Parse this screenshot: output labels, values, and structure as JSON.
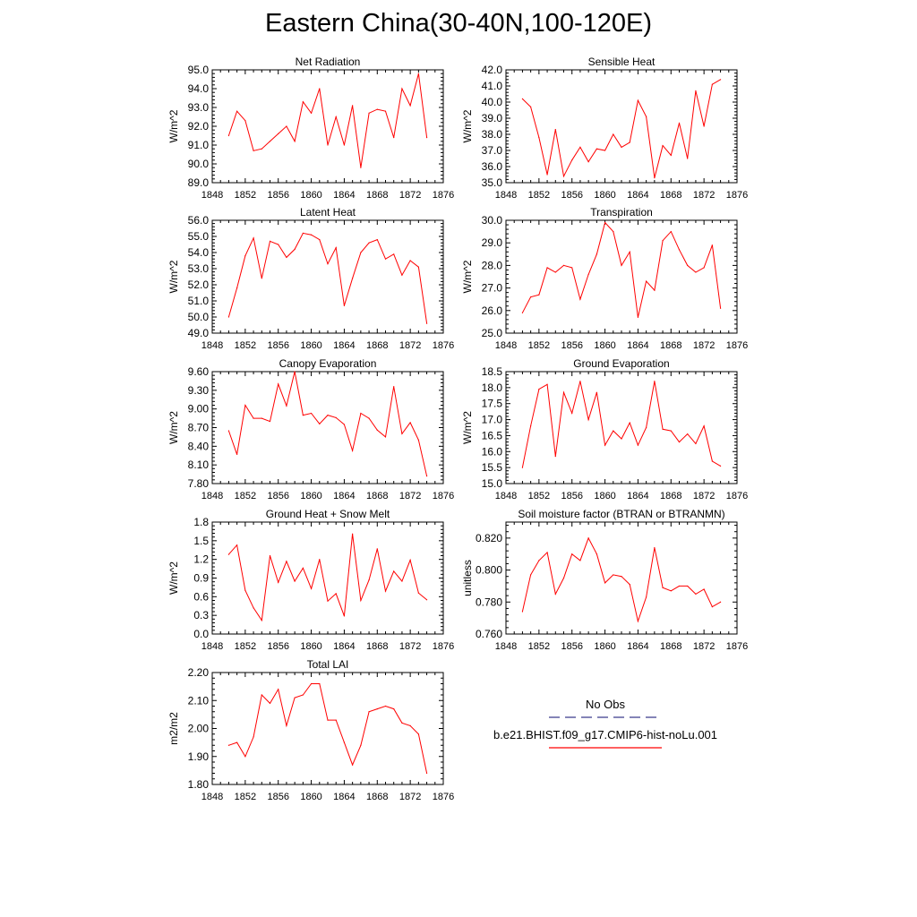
{
  "title": "Eastern China(30-40N,100-120E)",
  "x_ticks": [
    "1848",
    "1852",
    "1856",
    "1860",
    "1864",
    "1868",
    "1872",
    "1876"
  ],
  "colors": {
    "series": "#ff0000",
    "obs": "#3a3a8c"
  },
  "legend": [
    {
      "label": "No Obs",
      "style": "dashed",
      "color": "#3a3a8c"
    },
    {
      "label": "b.e21.BHIST.f09_g17.CMIP6-hist-noLu.001",
      "style": "solid",
      "color": "#ff0000"
    }
  ],
  "chart_data": [
    {
      "type": "line",
      "title": "Net Radiation",
      "ylabel": "W/m^2",
      "xlim": [
        1848,
        1876
      ],
      "ylim": [
        89,
        95
      ],
      "y_ticks": [
        "89.0",
        "90.0",
        "91.0",
        "92.0",
        "93.0",
        "94.0",
        "95.0"
      ],
      "x": [
        1850,
        1851,
        1852,
        1853,
        1854,
        1855,
        1856,
        1857,
        1858,
        1859,
        1860,
        1861,
        1862,
        1863,
        1864,
        1865,
        1866,
        1867,
        1868,
        1869,
        1870,
        1871,
        1872,
        1873,
        1874
      ],
      "y": [
        91.5,
        92.8,
        92.3,
        90.7,
        90.8,
        91.2,
        91.6,
        92.0,
        91.2,
        93.3,
        92.7,
        94.0,
        91.0,
        92.5,
        91.0,
        93.1,
        89.8,
        92.7,
        92.9,
        92.8,
        91.4,
        94.0,
        93.1,
        94.8,
        91.4
      ]
    },
    {
      "type": "line",
      "title": "Sensible Heat",
      "ylabel": "W/m^2",
      "xlim": [
        1848,
        1876
      ],
      "ylim": [
        35,
        42
      ],
      "y_ticks": [
        "35.0",
        "36.0",
        "37.0",
        "38.0",
        "39.0",
        "40.0",
        "41.0",
        "42.0"
      ],
      "x": [
        1850,
        1851,
        1852,
        1853,
        1854,
        1855,
        1856,
        1857,
        1858,
        1859,
        1860,
        1861,
        1862,
        1863,
        1864,
        1865,
        1866,
        1867,
        1868,
        1869,
        1870,
        1871,
        1872,
        1873,
        1874
      ],
      "y": [
        40.2,
        39.7,
        37.8,
        35.5,
        38.3,
        35.4,
        36.4,
        37.2,
        36.3,
        37.1,
        37.0,
        38.0,
        37.2,
        37.5,
        40.1,
        39.1,
        35.3,
        37.3,
        36.7,
        38.7,
        36.5,
        40.7,
        38.5,
        41.1,
        41.4
      ]
    },
    {
      "type": "line",
      "title": "Latent Heat",
      "ylabel": "W/m^2",
      "xlim": [
        1848,
        1876
      ],
      "ylim": [
        49,
        56
      ],
      "y_ticks": [
        "49.0",
        "50.0",
        "51.0",
        "52.0",
        "53.0",
        "54.0",
        "55.0",
        "56.0"
      ],
      "x": [
        1850,
        1851,
        1852,
        1853,
        1854,
        1855,
        1856,
        1857,
        1858,
        1859,
        1860,
        1861,
        1862,
        1863,
        1864,
        1865,
        1866,
        1867,
        1868,
        1869,
        1870,
        1871,
        1872,
        1873,
        1874
      ],
      "y": [
        50.0,
        51.8,
        53.8,
        54.9,
        52.4,
        54.7,
        54.5,
        53.7,
        54.2,
        55.2,
        55.1,
        54.8,
        53.3,
        54.3,
        50.7,
        52.4,
        54.0,
        54.6,
        54.8,
        53.6,
        53.9,
        52.6,
        53.5,
        53.1,
        49.6
      ]
    },
    {
      "type": "line",
      "title": "Transpiration",
      "ylabel": "W/m^2",
      "xlim": [
        1848,
        1876
      ],
      "ylim": [
        25,
        30
      ],
      "y_ticks": [
        "25.0",
        "26.0",
        "27.0",
        "28.0",
        "29.0",
        "30.0"
      ],
      "x": [
        1850,
        1851,
        1852,
        1853,
        1854,
        1855,
        1856,
        1857,
        1858,
        1859,
        1860,
        1861,
        1862,
        1863,
        1864,
        1865,
        1866,
        1867,
        1868,
        1869,
        1870,
        1871,
        1872,
        1873,
        1874
      ],
      "y": [
        25.9,
        26.6,
        26.7,
        27.9,
        27.7,
        28.0,
        27.9,
        26.5,
        27.6,
        28.5,
        29.9,
        29.5,
        28.0,
        28.6,
        25.7,
        27.3,
        26.9,
        29.1,
        29.5,
        28.7,
        28.0,
        27.7,
        27.9,
        28.9,
        26.1
      ]
    },
    {
      "type": "line",
      "title": "Canopy Evaporation",
      "ylabel": "W/m^2",
      "xlim": [
        1848,
        1876
      ],
      "ylim": [
        7.8,
        9.6
      ],
      "y_ticks": [
        "7.80",
        "8.10",
        "8.40",
        "8.70",
        "9.00",
        "9.30",
        "9.60"
      ],
      "x": [
        1850,
        1851,
        1852,
        1853,
        1854,
        1855,
        1856,
        1857,
        1858,
        1859,
        1860,
        1861,
        1862,
        1863,
        1864,
        1865,
        1866,
        1867,
        1868,
        1869,
        1870,
        1871,
        1872,
        1873,
        1874
      ],
      "y": [
        8.65,
        8.27,
        9.06,
        8.85,
        8.85,
        8.8,
        9.4,
        9.05,
        9.6,
        8.9,
        8.93,
        8.76,
        8.9,
        8.86,
        8.75,
        8.33,
        8.93,
        8.85,
        8.66,
        8.55,
        9.36,
        8.6,
        8.78,
        8.5,
        7.92
      ]
    },
    {
      "type": "line",
      "title": "Ground Evaporation",
      "ylabel": "W/m^2",
      "xlim": [
        1848,
        1876
      ],
      "ylim": [
        15,
        18.5
      ],
      "y_ticks": [
        "15.0",
        "15.5",
        "16.0",
        "16.5",
        "17.0",
        "17.5",
        "18.0",
        "18.5"
      ],
      "x": [
        1850,
        1851,
        1852,
        1853,
        1854,
        1855,
        1856,
        1857,
        1858,
        1859,
        1860,
        1861,
        1862,
        1863,
        1864,
        1865,
        1866,
        1867,
        1868,
        1869,
        1870,
        1871,
        1872,
        1873,
        1874
      ],
      "y": [
        15.5,
        16.8,
        17.95,
        18.1,
        15.85,
        17.85,
        17.2,
        18.2,
        17.0,
        17.85,
        16.2,
        16.65,
        16.4,
        16.9,
        16.2,
        16.75,
        18.2,
        16.7,
        16.65,
        16.3,
        16.55,
        16.25,
        16.8,
        15.7,
        15.55
      ]
    },
    {
      "type": "line",
      "title": "Ground Heat + Snow Melt",
      "ylabel": "W/m^2",
      "xlim": [
        1848,
        1876
      ],
      "ylim": [
        0,
        1.8
      ],
      "y_ticks": [
        "0.0",
        "0.3",
        "0.6",
        "0.9",
        "1.2",
        "1.5",
        "1.8"
      ],
      "x": [
        1850,
        1851,
        1852,
        1853,
        1854,
        1855,
        1856,
        1857,
        1858,
        1859,
        1860,
        1861,
        1862,
        1863,
        1864,
        1865,
        1866,
        1867,
        1868,
        1869,
        1870,
        1871,
        1872,
        1873,
        1874
      ],
      "y": [
        1.28,
        1.43,
        0.7,
        0.42,
        0.22,
        1.26,
        0.83,
        1.17,
        0.85,
        1.06,
        0.73,
        1.2,
        0.53,
        0.65,
        0.29,
        1.61,
        0.54,
        0.87,
        1.37,
        0.69,
        1.01,
        0.85,
        1.19,
        0.66,
        0.55
      ]
    },
    {
      "type": "line",
      "title": "Soil moisture factor (BTRAN or BTRANMN)",
      "ylabel": "unitless",
      "xlim": [
        1848,
        1876
      ],
      "ylim": [
        0.76,
        0.83
      ],
      "y_ticks": [
        "0.760",
        "0.780",
        "0.800",
        "0.820"
      ],
      "x": [
        1850,
        1851,
        1852,
        1853,
        1854,
        1855,
        1856,
        1857,
        1858,
        1859,
        1860,
        1861,
        1862,
        1863,
        1864,
        1865,
        1866,
        1867,
        1868,
        1869,
        1870,
        1871,
        1872,
        1873,
        1874
      ],
      "y": [
        0.774,
        0.797,
        0.806,
        0.811,
        0.785,
        0.795,
        0.81,
        0.806,
        0.82,
        0.81,
        0.792,
        0.797,
        0.796,
        0.791,
        0.768,
        0.783,
        0.814,
        0.789,
        0.787,
        0.79,
        0.79,
        0.785,
        0.788,
        0.777,
        0.78
      ]
    },
    {
      "type": "line",
      "title": "Total LAI",
      "ylabel": "m2/m2",
      "xlim": [
        1848,
        1876
      ],
      "ylim": [
        1.8,
        2.2
      ],
      "y_ticks": [
        "1.80",
        "1.90",
        "2.00",
        "2.10",
        "2.20"
      ],
      "x": [
        1850,
        1851,
        1852,
        1853,
        1854,
        1855,
        1856,
        1857,
        1858,
        1859,
        1860,
        1861,
        1862,
        1863,
        1864,
        1865,
        1866,
        1867,
        1868,
        1869,
        1870,
        1871,
        1872,
        1873,
        1874
      ],
      "y": [
        1.94,
        1.95,
        1.9,
        1.97,
        2.12,
        2.09,
        2.14,
        2.01,
        2.11,
        2.12,
        2.16,
        2.16,
        2.03,
        2.03,
        1.95,
        1.87,
        1.94,
        2.06,
        2.07,
        2.08,
        2.07,
        2.02,
        2.01,
        1.98,
        1.84
      ]
    }
  ]
}
